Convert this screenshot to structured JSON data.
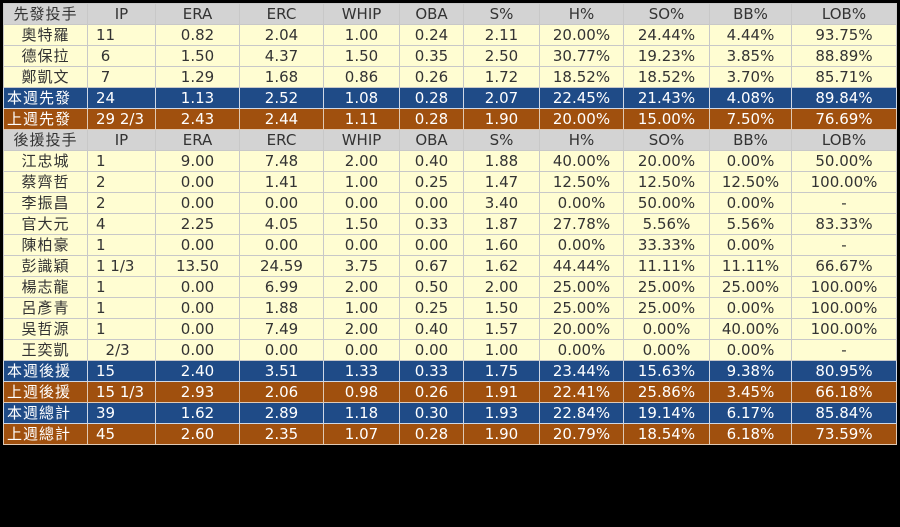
{
  "columns": [
    "IP",
    "ERA",
    "ERC",
    "WHIP",
    "OBA",
    "S%",
    "H%",
    "SO%",
    "BB%",
    "LOB%"
  ],
  "colors": {
    "header": "#d3d3d3",
    "data": "#fffdd2",
    "this_week": "#1f4b87",
    "last_week": "#a0500e"
  },
  "rows": [
    {
      "type": "header",
      "name": "先發投手",
      "cells": [
        "IP",
        "ERA",
        "ERC",
        "WHIP",
        "OBA",
        "S%",
        "H%",
        "SO%",
        "BB%",
        "LOB%"
      ]
    },
    {
      "type": "data",
      "name": "奧特羅",
      "cells": [
        "11",
        "0.82",
        "2.04",
        "1.00",
        "0.24",
        "2.11",
        "20.00%",
        "24.44%",
        "4.44%",
        "93.75%"
      ]
    },
    {
      "type": "data",
      "name": "德保拉",
      "cells": [
        " 6",
        "1.50",
        "4.37",
        "1.50",
        "0.35",
        "2.50",
        "30.77%",
        "19.23%",
        "3.85%",
        "88.89%"
      ]
    },
    {
      "type": "data",
      "name": "鄭凱文",
      "cells": [
        " 7",
        "1.29",
        "1.68",
        "0.86",
        "0.26",
        "1.72",
        "18.52%",
        "18.52%",
        "3.70%",
        "85.71%"
      ]
    },
    {
      "type": "blue",
      "name": "本週先發",
      "cells": [
        "24",
        "1.13",
        "2.52",
        "1.08",
        "0.28",
        "2.07",
        "22.45%",
        "21.43%",
        "4.08%",
        "89.84%"
      ]
    },
    {
      "type": "brown",
      "name": "上週先發",
      "cells": [
        "29 2/3",
        "2.43",
        "2.44",
        "1.11",
        "0.28",
        "1.90",
        "20.00%",
        "15.00%",
        "7.50%",
        "76.69%"
      ]
    },
    {
      "type": "header",
      "name": "後援投手",
      "cells": [
        "IP",
        "ERA",
        "ERC",
        "WHIP",
        "OBA",
        "S%",
        "H%",
        "SO%",
        "BB%",
        "LOB%"
      ]
    },
    {
      "type": "data",
      "name": "江忠城",
      "cells": [
        "1",
        "9.00",
        "7.48",
        "2.00",
        "0.40",
        "1.88",
        "40.00%",
        "20.00%",
        "0.00%",
        "50.00%"
      ]
    },
    {
      "type": "data",
      "name": "蔡齊哲",
      "cells": [
        "2",
        "0.00",
        "1.41",
        "1.00",
        "0.25",
        "1.47",
        "12.50%",
        "12.50%",
        "12.50%",
        "100.00%"
      ]
    },
    {
      "type": "data",
      "name": "李振昌",
      "cells": [
        "2",
        "0.00",
        "0.00",
        "0.00",
        "0.00",
        "3.40",
        "0.00%",
        "50.00%",
        "0.00%",
        "-"
      ]
    },
    {
      "type": "data",
      "name": "官大元",
      "cells": [
        "4",
        "2.25",
        "4.05",
        "1.50",
        "0.33",
        "1.87",
        "27.78%",
        "5.56%",
        "5.56%",
        "83.33%"
      ]
    },
    {
      "type": "data",
      "name": "陳柏豪",
      "cells": [
        "1",
        "0.00",
        "0.00",
        "0.00",
        "0.00",
        "1.60",
        "0.00%",
        "33.33%",
        "0.00%",
        "-"
      ]
    },
    {
      "type": "data",
      "name": "彭識穎",
      "cells": [
        "1 1/3",
        "13.50",
        "24.59",
        "3.75",
        "0.67",
        "1.62",
        "44.44%",
        "11.11%",
        "11.11%",
        "66.67%"
      ]
    },
    {
      "type": "data",
      "name": "楊志龍",
      "cells": [
        "1",
        "0.00",
        "6.99",
        "2.00",
        "0.50",
        "2.00",
        "25.00%",
        "25.00%",
        "25.00%",
        "100.00%"
      ]
    },
    {
      "type": "data",
      "name": "呂彥青",
      "cells": [
        "1",
        "0.00",
        "1.88",
        "1.00",
        "0.25",
        "1.50",
        "25.00%",
        "25.00%",
        "0.00%",
        "100.00%"
      ]
    },
    {
      "type": "data",
      "name": "吳哲源",
      "cells": [
        "1",
        "0.00",
        "7.49",
        "2.00",
        "0.40",
        "1.57",
        "20.00%",
        "0.00%",
        "40.00%",
        "100.00%"
      ]
    },
    {
      "type": "data",
      "name": "王奕凱",
      "cells": [
        "  2/3",
        "0.00",
        "0.00",
        "0.00",
        "0.00",
        "1.00",
        "0.00%",
        "0.00%",
        "0.00%",
        "-"
      ]
    },
    {
      "type": "blue",
      "name": "本週後援",
      "cells": [
        "15",
        "2.40",
        "3.51",
        "1.33",
        "0.33",
        "1.75",
        "23.44%",
        "15.63%",
        "9.38%",
        "80.95%"
      ]
    },
    {
      "type": "brown",
      "name": "上週後援",
      "cells": [
        "15 1/3",
        "2.93",
        "2.06",
        "0.98",
        "0.26",
        "1.91",
        "22.41%",
        "25.86%",
        "3.45%",
        "66.18%"
      ]
    },
    {
      "type": "blue",
      "name": "本週總計",
      "cells": [
        "39",
        "1.62",
        "2.89",
        "1.18",
        "0.30",
        "1.93",
        "22.84%",
        "19.14%",
        "6.17%",
        "85.84%"
      ]
    },
    {
      "type": "brown",
      "name": "上週總計",
      "cells": [
        "45",
        "2.60",
        "2.35",
        "1.07",
        "0.28",
        "1.90",
        "20.79%",
        "18.54%",
        "6.18%",
        "73.59%"
      ]
    }
  ]
}
